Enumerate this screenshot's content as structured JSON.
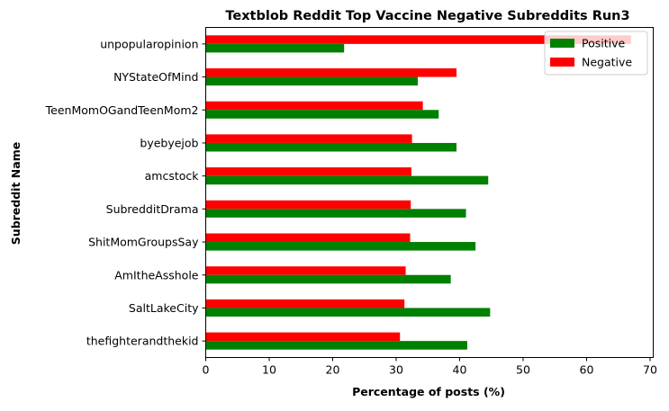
{
  "chart_data": {
    "type": "bar",
    "orientation": "horizontal",
    "title": "Textblob Reddit Top Vaccine Negative Subreddits Run3",
    "xlabel": "Percentage of posts (%)",
    "ylabel": "Subreddit Name",
    "xlim": [
      0,
      70.5
    ],
    "xticks": [
      0,
      10,
      20,
      30,
      40,
      50,
      60,
      70
    ],
    "grid": false,
    "legend_position": "top-right",
    "categories": [
      "unpopularopinion",
      "NYStateOfMind",
      "TeenMomOGandTeenMom2",
      "byebyejob",
      "amcstock",
      "SubredditDrama",
      "ShitMomGroupsSay",
      "AmItheAsshole",
      "SaltLakeCity",
      "thefighterandthekid"
    ],
    "series": [
      {
        "name": "Positive",
        "color": "#008000",
        "values": [
          21.8,
          33.4,
          36.7,
          39.5,
          44.5,
          41.0,
          42.5,
          38.6,
          44.8,
          41.2
        ]
      },
      {
        "name": "Negative",
        "color": "#ff0000",
        "values": [
          67.0,
          39.5,
          34.2,
          32.5,
          32.4,
          32.3,
          32.2,
          31.5,
          31.3,
          30.6
        ]
      }
    ]
  }
}
